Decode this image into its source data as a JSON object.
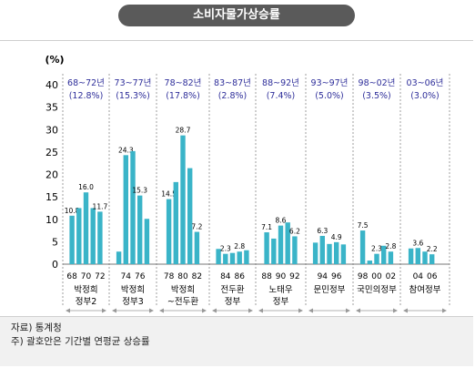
{
  "title": "소비자물가상승률",
  "chart_data": {
    "type": "bar",
    "ylabel": "(%)",
    "ylim": [
      0,
      40
    ],
    "yticks": [
      0,
      5,
      10,
      15,
      20,
      25,
      30,
      35,
      40
    ],
    "bar_color": "#3ab4c8",
    "group_label_color": "#2e2e9a",
    "legend": "none",
    "groups": [
      {
        "period": "68~72년",
        "rate": "(12.8%)",
        "label": [
          "박정희",
          "정부2"
        ],
        "bars": [
          10.8,
          12.5,
          16.0,
          12.5,
          11.7
        ],
        "data_labels": [
          "10.8",
          "",
          "16.0",
          "",
          "11.7"
        ],
        "ticks": [
          "68",
          "70",
          "72"
        ]
      },
      {
        "period": "73~77년",
        "rate": "(15.3%)",
        "label": [
          "박정희",
          "정부3"
        ],
        "bars": [
          2.8,
          24.3,
          25.2,
          15.3,
          10.1
        ],
        "data_labels": [
          "",
          "24.3",
          "",
          "15.3",
          ""
        ],
        "ticks": [
          "74",
          "76"
        ]
      },
      {
        "period": "78~82년",
        "rate": "(17.8%)",
        "label": [
          "박정희",
          "~전두환"
        ],
        "bars": [
          14.5,
          18.3,
          28.7,
          21.4,
          7.2
        ],
        "data_labels": [
          "14.5",
          "",
          "28.7",
          "",
          "7.2"
        ],
        "ticks": [
          "78",
          "80",
          "82"
        ]
      },
      {
        "period": "83~87년",
        "rate": "(2.8%)",
        "label": [
          "전두환",
          "정부"
        ],
        "bars": [
          3.4,
          2.3,
          2.5,
          2.8,
          3.1
        ],
        "data_labels": [
          "",
          "2.3",
          "",
          "2.8",
          ""
        ],
        "ticks": [
          "84",
          "86"
        ]
      },
      {
        "period": "88~92년",
        "rate": "(7.4%)",
        "label": [
          "노태우",
          "정부"
        ],
        "bars": [
          7.1,
          5.7,
          8.6,
          9.3,
          6.2
        ],
        "data_labels": [
          "7.1",
          "",
          "8.6",
          "",
          "6.2"
        ],
        "ticks": [
          "88",
          "90",
          "92"
        ]
      },
      {
        "period": "93~97년",
        "rate": "(5.0%)",
        "label": [
          "문민정부"
        ],
        "bars": [
          4.8,
          6.3,
          4.5,
          4.9,
          4.4
        ],
        "data_labels": [
          "",
          "6.3",
          "",
          "4.9",
          ""
        ],
        "ticks": [
          "94",
          "96"
        ]
      },
      {
        "period": "98~02년",
        "rate": "(3.5%)",
        "label": [
          "국민의정부"
        ],
        "bars": [
          7.5,
          0.8,
          2.3,
          4.1,
          2.8
        ],
        "data_labels": [
          "7.5",
          "",
          "2.3",
          "",
          "2.8"
        ],
        "ticks": [
          "98",
          "00",
          "02"
        ]
      },
      {
        "period": "03~06년",
        "rate": "(3.0%)",
        "label": [
          "참여정부"
        ],
        "bars": [
          3.5,
          3.6,
          2.8,
          2.2
        ],
        "data_labels": [
          "",
          "3.6",
          "",
          "2.2"
        ],
        "ticks": [
          "04",
          "06"
        ]
      }
    ]
  },
  "footnote": {
    "source": "자료) 통계청",
    "note": "주)  괄호안은 기간별 연평균 상승률"
  }
}
